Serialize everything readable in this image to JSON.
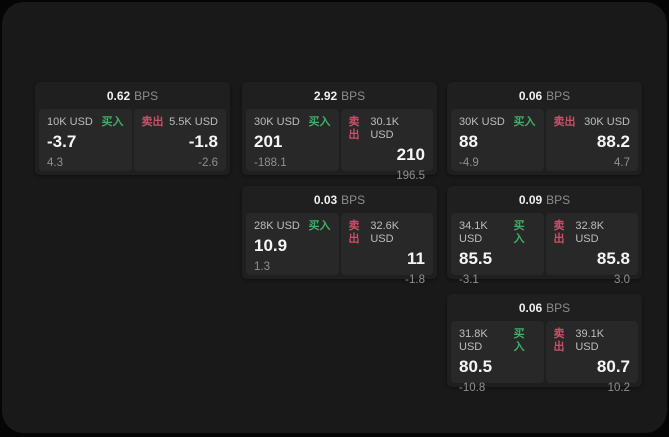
{
  "colors": {
    "background": "#050505",
    "surface": "#191919",
    "card": "#1f1f1f",
    "panel": "#282828",
    "buy_green": "#3fae66",
    "sell_red": "#c85069",
    "text_primary": "#f5f5f5",
    "text_muted": "#8f8f8f"
  },
  "cards": [
    {
      "spread": "0.62",
      "unit": "BPS",
      "buy": {
        "amount": "10K USD",
        "label": "买入",
        "price": "-3.7",
        "change": "4.3"
      },
      "sell": {
        "label": "卖出",
        "amount": "5.5K USD",
        "price": "-1.8",
        "change": "-2.6"
      }
    },
    {
      "spread": "2.92",
      "unit": "BPS",
      "buy": {
        "amount": "30K USD",
        "label": "买入",
        "price": "201",
        "change": "-188.1"
      },
      "sell": {
        "label": "卖出",
        "amount": "30.1K USD",
        "price": "210",
        "change": "196.5"
      }
    },
    {
      "spread": "0.06",
      "unit": "BPS",
      "buy": {
        "amount": "30K USD",
        "label": "买入",
        "price": "88",
        "change": "-4.9"
      },
      "sell": {
        "label": "卖出",
        "amount": "30K USD",
        "price": "88.2",
        "change": "4.7"
      }
    },
    {
      "spread": "0.03",
      "unit": "BPS",
      "buy": {
        "amount": "28K USD",
        "label": "买入",
        "price": "10.9",
        "change": "1.3"
      },
      "sell": {
        "label": "卖出",
        "amount": "32.6K USD",
        "price": "11",
        "change": "-1.8"
      }
    },
    {
      "spread": "0.09",
      "unit": "BPS",
      "buy": {
        "amount": "34.1K USD",
        "label": "买入",
        "price": "85.5",
        "change": "-3.1"
      },
      "sell": {
        "label": "卖出",
        "amount": "32.8K USD",
        "price": "85.8",
        "change": "3.0"
      }
    },
    {
      "spread": "0.06",
      "unit": "BPS",
      "buy": {
        "amount": "31.8K USD",
        "label": "买入",
        "price": "80.5",
        "change": "-10.8"
      },
      "sell": {
        "label": "卖出",
        "amount": "39.1K USD",
        "price": "80.7",
        "change": "10.2"
      }
    }
  ]
}
